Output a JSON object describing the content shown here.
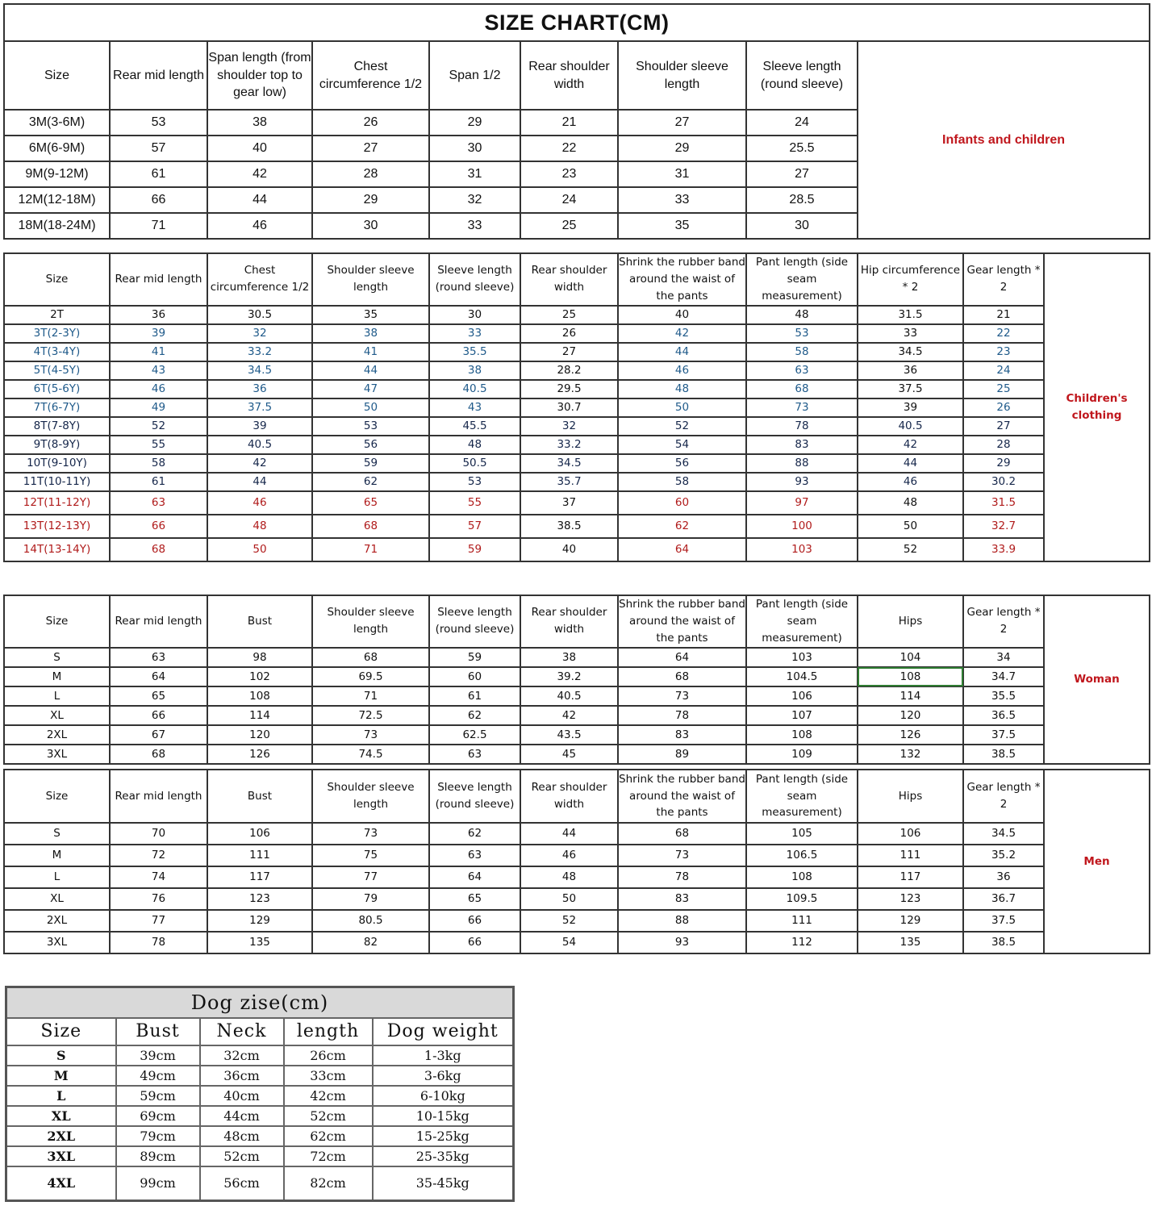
{
  "infants": {
    "title": "SIZE CHART(CM)",
    "side_label": "Infants and children",
    "headers": [
      "Size",
      "Rear mid length",
      "Span length (from shoulder top to gear low)",
      "Chest circumference 1/2",
      "Span 1/2",
      "Rear shoulder width",
      "Shoulder sleeve length",
      "Sleeve length (round sleeve)"
    ],
    "rows": [
      [
        "3M(3-6M)",
        "53",
        "38",
        "26",
        "29",
        "21",
        "27",
        "24"
      ],
      [
        "6M(6-9M)",
        "57",
        "40",
        "27",
        "30",
        "22",
        "29",
        "25.5"
      ],
      [
        "9M(9-12M)",
        "61",
        "42",
        "28",
        "31",
        "23",
        "31",
        "27"
      ],
      [
        "12M(12-18M)",
        "66",
        "44",
        "29",
        "32",
        "24",
        "33",
        "28.5"
      ],
      [
        "18M(18-24M)",
        "71",
        "46",
        "30",
        "33",
        "25",
        "35",
        "30"
      ]
    ]
  },
  "children": {
    "side_label": "Children's clothing",
    "headers": [
      "Size",
      "Rear mid length",
      "Chest circumference 1/2",
      "Shoulder sleeve length",
      "Sleeve length (round sleeve)",
      "Rear shoulder width",
      "Shrink the rubber band around the waist of the pants",
      "Pant length (side seam measurement)",
      "Hip circumference * 2",
      "Gear length * 2"
    ],
    "rows": [
      {
        "tone": "black",
        "cells": [
          "2T",
          "36",
          "30.5",
          "35",
          "30",
          "25",
          "40",
          "48",
          "31.5",
          "21"
        ]
      },
      {
        "tone": "blue",
        "cells": [
          "3T(2-3Y)",
          "39",
          "32",
          "38",
          "33",
          "26",
          "42",
          "53",
          "33",
          "22"
        ]
      },
      {
        "tone": "blue",
        "cells": [
          "4T(3-4Y)",
          "41",
          "33.2",
          "41",
          "35.5",
          "27",
          "44",
          "58",
          "34.5",
          "23"
        ]
      },
      {
        "tone": "blue",
        "cells": [
          "5T(4-5Y)",
          "43",
          "34.5",
          "44",
          "38",
          "28.2",
          "46",
          "63",
          "36",
          "24"
        ]
      },
      {
        "tone": "blue",
        "cells": [
          "6T(5-6Y)",
          "46",
          "36",
          "47",
          "40.5",
          "29.5",
          "48",
          "68",
          "37.5",
          "25"
        ]
      },
      {
        "tone": "blue",
        "cells": [
          "7T(6-7Y)",
          "49",
          "37.5",
          "50",
          "43",
          "30.7",
          "50",
          "73",
          "39",
          "26"
        ]
      },
      {
        "tone": "navy",
        "cells": [
          "8T(7-8Y)",
          "52",
          "39",
          "53",
          "45.5",
          "32",
          "52",
          "78",
          "40.5",
          "27"
        ]
      },
      {
        "tone": "navy",
        "cells": [
          "9T(8-9Y)",
          "55",
          "40.5",
          "56",
          "48",
          "33.2",
          "54",
          "83",
          "42",
          "28"
        ]
      },
      {
        "tone": "navy",
        "cells": [
          "10T(9-10Y)",
          "58",
          "42",
          "59",
          "50.5",
          "34.5",
          "56",
          "88",
          "44",
          "29"
        ]
      },
      {
        "tone": "navy",
        "cells": [
          "11T(10-11Y)",
          "61",
          "44",
          "62",
          "53",
          "35.7",
          "58",
          "93",
          "46",
          "30.2"
        ]
      },
      {
        "tone": "red",
        "cells": [
          "12T(11-12Y)",
          "63",
          "46",
          "65",
          "55",
          "37",
          "60",
          "97",
          "48",
          "31.5"
        ]
      },
      {
        "tone": "red",
        "cells": [
          "13T(12-13Y)",
          "66",
          "48",
          "68",
          "57",
          "38.5",
          "62",
          "100",
          "50",
          "32.7"
        ]
      },
      {
        "tone": "red",
        "cells": [
          "14T(13-14Y)",
          "68",
          "50",
          "71",
          "59",
          "40",
          "64",
          "103",
          "52",
          "33.9"
        ]
      }
    ]
  },
  "woman": {
    "side_label": "Woman",
    "headers": [
      "Size",
      "Rear mid length",
      "Bust",
      "Shoulder sleeve length",
      "Sleeve length (round sleeve)",
      "Rear shoulder width",
      "Shrink the rubber band around the waist of the pants",
      "Pant length (side seam measurement)",
      "Hips",
      "Gear length * 2"
    ],
    "rows": [
      [
        "S",
        "63",
        "98",
        "68",
        "59",
        "38",
        "64",
        "103",
        "104",
        "34"
      ],
      [
        "M",
        "64",
        "102",
        "69.5",
        "60",
        "39.2",
        "68",
        "104.5",
        "108",
        "34.7"
      ],
      [
        "L",
        "65",
        "108",
        "71",
        "61",
        "40.5",
        "73",
        "106",
        "114",
        "35.5"
      ],
      [
        "XL",
        "66",
        "114",
        "72.5",
        "62",
        "42",
        "78",
        "107",
        "120",
        "36.5"
      ],
      [
        "2XL",
        "67",
        "120",
        "73",
        "62.5",
        "43.5",
        "83",
        "108",
        "126",
        "37.5"
      ],
      [
        "3XL",
        "68",
        "126",
        "74.5",
        "63",
        "45",
        "89",
        "109",
        "132",
        "38.5"
      ]
    ]
  },
  "men": {
    "side_label": "Men",
    "headers": [
      "Size",
      "Rear mid length",
      "Bust",
      "Shoulder sleeve length",
      "Sleeve length (round sleeve)",
      "Rear shoulder width",
      "Shrink the rubber band around the waist of the pants",
      "Pant length (side seam measurement)",
      "Hips",
      "Gear length * 2"
    ],
    "rows": [
      [
        "S",
        "70",
        "106",
        "73",
        "62",
        "44",
        "68",
        "105",
        "106",
        "34.5"
      ],
      [
        "M",
        "72",
        "111",
        "75",
        "63",
        "46",
        "73",
        "106.5",
        "111",
        "35.2"
      ],
      [
        "L",
        "74",
        "117",
        "77",
        "64",
        "48",
        "78",
        "108",
        "117",
        "36"
      ],
      [
        "XL",
        "76",
        "123",
        "79",
        "65",
        "50",
        "83",
        "109.5",
        "123",
        "36.7"
      ],
      [
        "2XL",
        "77",
        "129",
        "80.5",
        "66",
        "52",
        "88",
        "111",
        "129",
        "37.5"
      ],
      [
        "3XL",
        "78",
        "135",
        "82",
        "66",
        "54",
        "93",
        "112",
        "135",
        "38.5"
      ]
    ]
  },
  "dog": {
    "title": "Dog zise(cm)",
    "headers": [
      "Size",
      "Bust",
      "Neck",
      "length",
      "Dog weight"
    ],
    "rows": [
      [
        "S",
        "39cm",
        "32cm",
        "26cm",
        "1-3kg"
      ],
      [
        "M",
        "49cm",
        "36cm",
        "33cm",
        "3-6kg"
      ],
      [
        "L",
        "59cm",
        "40cm",
        "42cm",
        "6-10kg"
      ],
      [
        "XL",
        "69cm",
        "44cm",
        "52cm",
        "10-15kg"
      ],
      [
        "2XL",
        "79cm",
        "48cm",
        "62cm",
        "15-25kg"
      ],
      [
        "3XL",
        "89cm",
        "52cm",
        "72cm",
        "25-35kg"
      ],
      [
        "4XL",
        "99cm",
        "56cm",
        "82cm",
        "35-45kg"
      ]
    ]
  },
  "colors": {
    "label_red": "#c0171d",
    "blue": "#1f5a8a",
    "navy": "#15264a",
    "red": "#b01b1b",
    "selected_cell": "#2f7d32"
  }
}
